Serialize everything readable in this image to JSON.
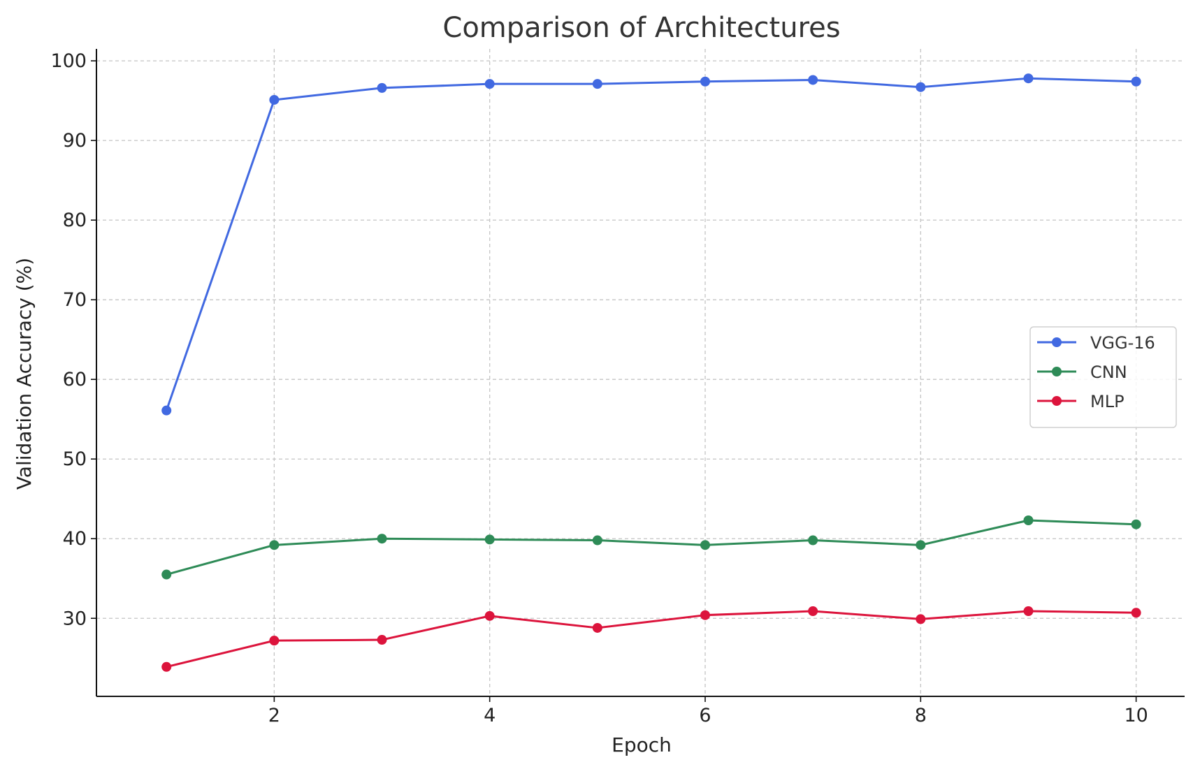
{
  "chart_data": {
    "type": "line",
    "title": "Comparison of Architectures",
    "xlabel": "Epoch",
    "ylabel": "Validation Accuracy (%)",
    "x": [
      1,
      2,
      3,
      4,
      5,
      6,
      7,
      8,
      9,
      10
    ],
    "xlim": [
      0.35,
      10.45
    ],
    "ylim": [
      20.2,
      101.5
    ],
    "xticks": [
      2,
      4,
      6,
      8,
      10
    ],
    "yticks": [
      30,
      40,
      50,
      60,
      70,
      80,
      90,
      100
    ],
    "grid": true,
    "legend_position": "center-right",
    "series": [
      {
        "name": "VGG-16",
        "color": "#4169E1",
        "values": [
          56.1,
          95.1,
          96.6,
          97.1,
          97.1,
          97.4,
          97.6,
          96.7,
          97.8,
          97.4
        ]
      },
      {
        "name": "CNN",
        "color": "#2E8B57",
        "values": [
          35.5,
          39.2,
          40.0,
          39.9,
          39.8,
          39.2,
          39.8,
          39.2,
          42.3,
          41.8
        ]
      },
      {
        "name": "MLP",
        "color": "#DC143C",
        "values": [
          23.9,
          27.2,
          27.3,
          30.3,
          28.8,
          30.4,
          30.9,
          29.9,
          30.9,
          30.7
        ]
      }
    ]
  }
}
